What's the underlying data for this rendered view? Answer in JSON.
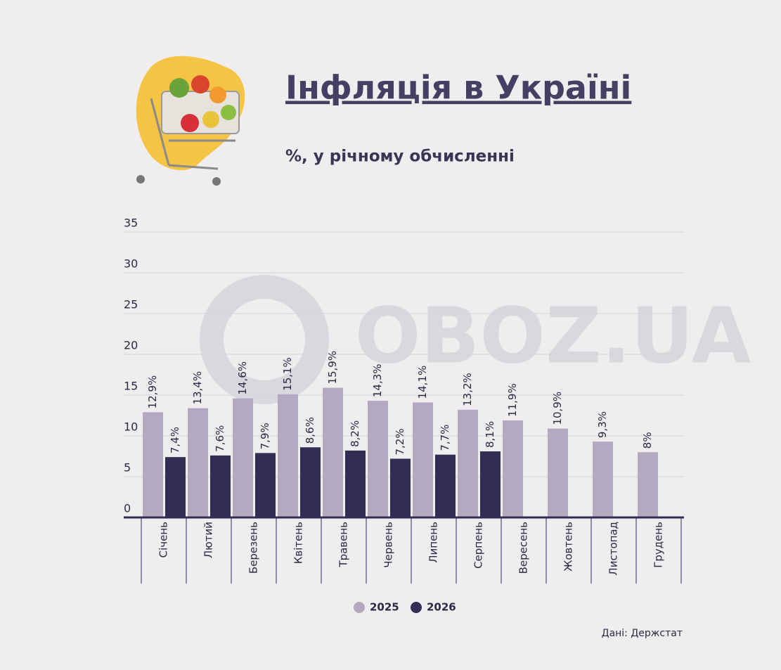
{
  "chart_data": {
    "type": "bar",
    "title": "Інфляція в Україні",
    "subtitle": "%, у річному обчисленні",
    "source": "Дані: Держстат",
    "watermark": "OBOZ.UA",
    "categories": [
      "Січень",
      "Лютий",
      "Березень",
      "Квітень",
      "Травень",
      "Червень",
      "Липень",
      "Серпень",
      "Вересень",
      "Жовтень",
      "Листопад",
      "Грудень"
    ],
    "series": [
      {
        "name": "2025",
        "color": "#b3a9c0",
        "values": [
          12.9,
          13.4,
          14.6,
          15.1,
          15.9,
          14.3,
          14.1,
          13.2,
          11.9,
          10.9,
          9.3,
          8
        ],
        "value_labels": [
          "12,9%",
          "13,4%",
          "14,6%",
          "15,1%",
          "15,9%",
          "14,3%",
          "14,1%",
          "13,2%",
          "11,9%",
          "10,9%",
          "9,3%",
          "8%"
        ]
      },
      {
        "name": "2026",
        "color": "#352c55",
        "values": [
          7.4,
          7.6,
          7.9,
          8.6,
          8.2,
          7.2,
          7.7,
          8.1,
          null,
          null,
          null,
          null
        ],
        "value_labels": [
          "7,4%",
          "7,6%",
          "7,9%",
          "8,6%",
          "8,2%",
          "7,2%",
          "7,7%",
          "8,1%",
          null,
          null,
          null,
          null
        ]
      }
    ],
    "ylim": [
      0,
      35
    ],
    "yticks": [
      0,
      5,
      10,
      15,
      20,
      25,
      30,
      35
    ],
    "grid": true,
    "legend": "bottom"
  }
}
